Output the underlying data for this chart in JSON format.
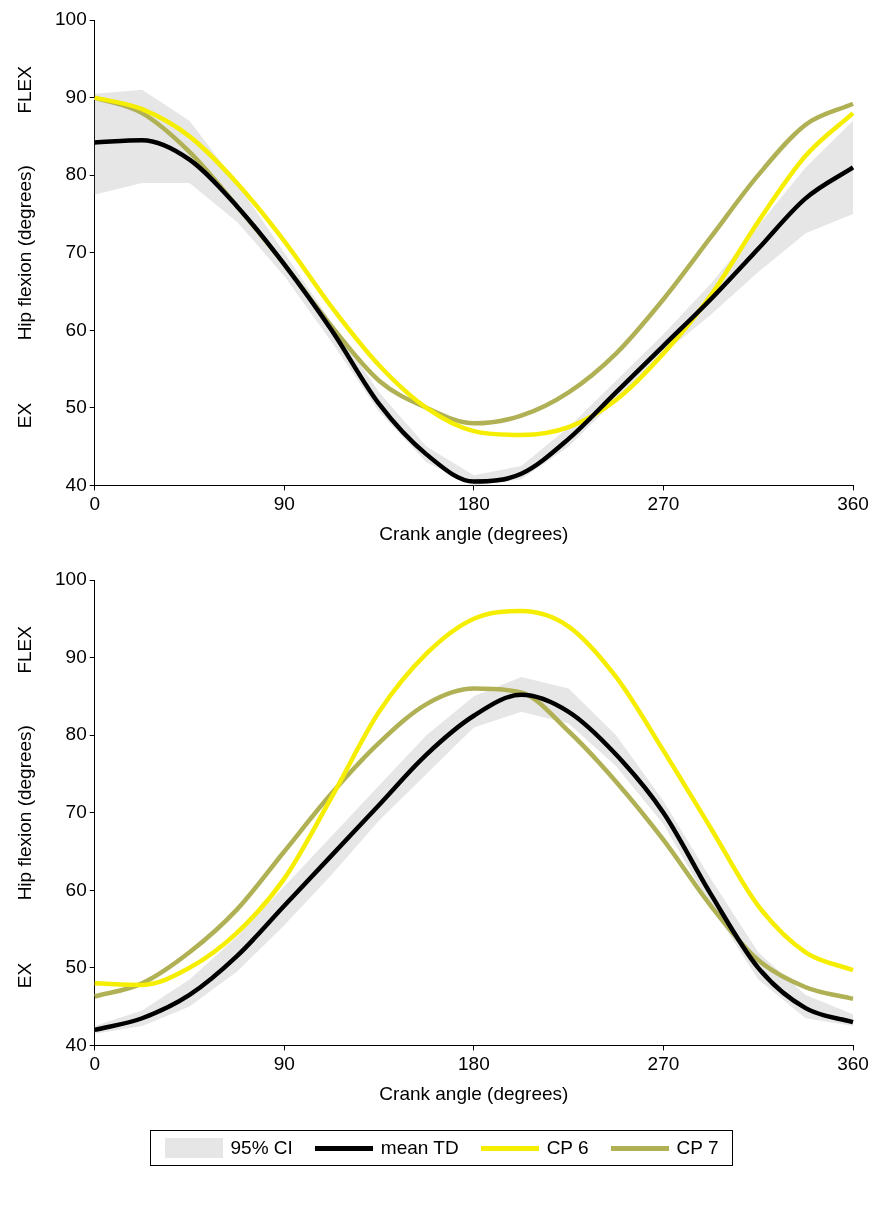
{
  "chart_data": [
    {
      "type": "line",
      "xlabel": "Crank angle (degrees)",
      "ylabel": "Hip flexion (degrees)",
      "annotations": [
        "EX",
        "FLEX"
      ],
      "x": [
        0,
        22.5,
        45,
        67.5,
        90,
        112.5,
        135,
        157.5,
        180,
        202.5,
        225,
        247.5,
        270,
        292.5,
        315,
        337.5,
        360
      ],
      "xlim": [
        0,
        360
      ],
      "xticks": [
        0,
        90,
        180,
        270,
        360
      ],
      "ylim": [
        40,
        100
      ],
      "yticks": [
        40,
        50,
        60,
        70,
        80,
        90,
        100
      ],
      "marker": "none",
      "line_style": "solid",
      "series": [
        {
          "type": "area",
          "color": "#e6e6e6",
          "values": [
            null,
            null,
            null,
            null,
            null,
            null,
            null,
            null,
            null,
            null,
            null,
            null,
            null,
            null,
            null,
            null,
            null
          ],
          "lower": [
            77.5,
            79,
            79,
            74,
            67,
            58.5,
            49.5,
            43,
            40,
            40.8,
            45,
            51,
            57,
            62,
            67.5,
            72.5,
            75
          ],
          "upper": [
            90.5,
            91,
            87,
            79,
            70,
            61,
            52,
            45,
            41.3,
            42.5,
            47.5,
            53.5,
            59.5,
            66,
            73.5,
            81,
            87
          ]
        },
        {
          "color": "#000000",
          "values": [
            84.2,
            84.5,
            82,
            76,
            68.5,
            60,
            50.5,
            44,
            40.5,
            41.5,
            46,
            52,
            58,
            64,
            70.5,
            77,
            81
          ]
        },
        {
          "color": "#f5ee00",
          "values": [
            90,
            88.5,
            85,
            79,
            71.5,
            63,
            55.5,
            50,
            47,
            46.5,
            47.5,
            51,
            57,
            64.5,
            74,
            82.5,
            88
          ]
        },
        {
          "color": "#b0b055",
          "values": [
            90,
            88,
            83,
            76,
            68.5,
            60.5,
            53.5,
            50,
            48,
            49,
            52,
            57,
            64,
            72,
            80,
            86.5,
            89.2
          ]
        }
      ]
    },
    {
      "type": "line",
      "xlabel": "Crank angle (degrees)",
      "ylabel": "Hip flexion (degrees)",
      "annotations": [
        "EX",
        "FLEX"
      ],
      "x": [
        0,
        22.5,
        45,
        67.5,
        90,
        112.5,
        135,
        157.5,
        180,
        202.5,
        225,
        247.5,
        270,
        292.5,
        315,
        337.5,
        360
      ],
      "xlim": [
        0,
        360
      ],
      "xticks": [
        0,
        90,
        180,
        270,
        360
      ],
      "ylim": [
        40,
        100
      ],
      "yticks": [
        40,
        50,
        60,
        70,
        80,
        90,
        100
      ],
      "legend": "bottom",
      "marker": "none",
      "line_style": "solid",
      "series": [
        {
          "name": "95% CI",
          "type": "area",
          "color": "#e6e6e6",
          "values": [
            null,
            null,
            null,
            null,
            null,
            null,
            null,
            null,
            null,
            null,
            null,
            null,
            null,
            null,
            null,
            null,
            null
          ],
          "lower": [
            41.5,
            42.5,
            45,
            49.5,
            55.5,
            62,
            69,
            75,
            81,
            83,
            81.5,
            76,
            68.5,
            58,
            48.5,
            43.5,
            42.5
          ],
          "upper": [
            42.5,
            44.5,
            48.5,
            54,
            60.5,
            67,
            73.5,
            80,
            85,
            87.5,
            86,
            80,
            71.5,
            61.5,
            52,
            46.5,
            44
          ]
        },
        {
          "name": "mean TD",
          "color": "#000000",
          "values": [
            42,
            43.5,
            46.5,
            51.5,
            58,
            64.5,
            71,
            77.5,
            82.5,
            85.2,
            83,
            77.5,
            70,
            59.5,
            50,
            44.8,
            43
          ]
        },
        {
          "name": "CP 6",
          "color": "#f5ee00",
          "values": [
            48,
            47.8,
            50,
            54.5,
            61.5,
            72,
            83,
            90.5,
            95,
            96,
            94,
            87.5,
            78,
            68,
            58,
            52,
            49.7
          ]
        },
        {
          "name": "CP 7",
          "color": "#b0b055",
          "values": [
            46.3,
            48,
            52,
            57.5,
            65,
            72.5,
            79,
            84,
            86,
            85.5,
            80.5,
            74,
            66.5,
            58,
            51,
            47.5,
            46
          ]
        }
      ]
    }
  ]
}
